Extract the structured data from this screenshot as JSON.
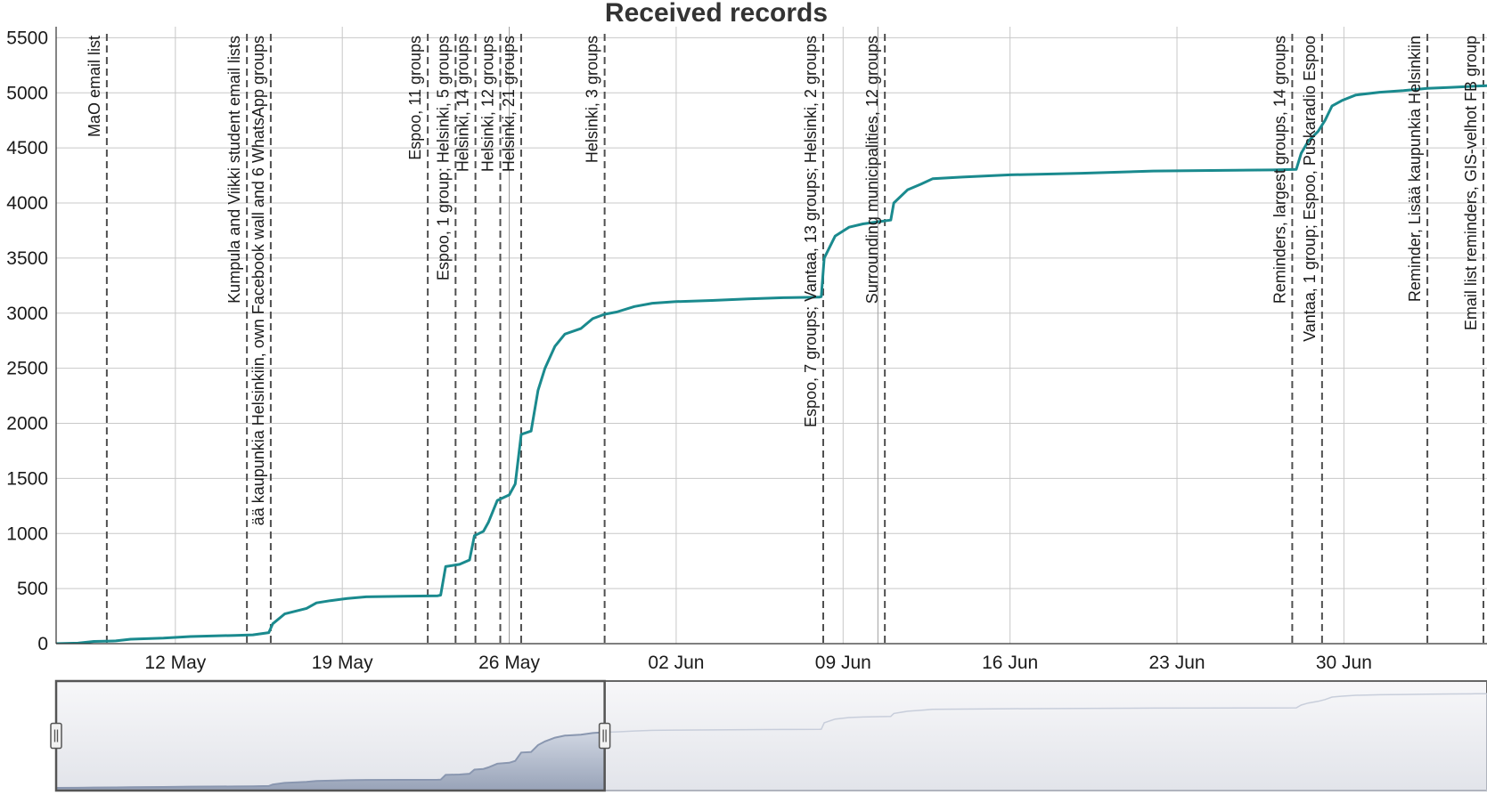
{
  "chart_data": {
    "type": "line",
    "title": "Received records",
    "xlabel": "",
    "ylabel": "",
    "x_axis_type": "date",
    "xlim": [
      "2020-05-07",
      "2020-07-06"
    ],
    "ylim": [
      0,
      5600
    ],
    "y_ticks": [
      0,
      500,
      1000,
      1500,
      2000,
      2500,
      3000,
      3500,
      4000,
      4500,
      5000,
      5500
    ],
    "x_ticks": [
      {
        "date": "2020-05-12",
        "label": "12 May"
      },
      {
        "date": "2020-05-19",
        "label": "19 May"
      },
      {
        "date": "2020-05-26",
        "label": "26 May"
      },
      {
        "date": "2020-06-02",
        "label": "02 Jun"
      },
      {
        "date": "2020-06-09",
        "label": "09 Jun"
      },
      {
        "date": "2020-06-16",
        "label": "16 Jun"
      },
      {
        "date": "2020-06-23",
        "label": "23 Jun"
      },
      {
        "date": "2020-06-30",
        "label": "30 Jun"
      }
    ],
    "grid": true,
    "legend": "none",
    "series_color": "#1a8a8e",
    "series": [
      {
        "points": [
          [
            "2020-05-07 00:00",
            0
          ],
          [
            "2020-05-07 22:00",
            5
          ],
          [
            "2020-05-08 14:00",
            20
          ],
          [
            "2020-05-09 12:00",
            25
          ],
          [
            "2020-05-10 03:00",
            40
          ],
          [
            "2020-05-11 12:00",
            50
          ],
          [
            "2020-05-12 15:00",
            65
          ],
          [
            "2020-05-14 12:00",
            75
          ],
          [
            "2020-05-15 06:00",
            80
          ],
          [
            "2020-05-15 22:00",
            100
          ],
          [
            "2020-05-16 02:00",
            180
          ],
          [
            "2020-05-16 14:00",
            270
          ],
          [
            "2020-05-17 03:00",
            300
          ],
          [
            "2020-05-17 12:00",
            320
          ],
          [
            "2020-05-17 22:00",
            370
          ],
          [
            "2020-05-18 12:00",
            390
          ],
          [
            "2020-05-19 05:00",
            410
          ],
          [
            "2020-05-20 00:00",
            425
          ],
          [
            "2020-05-21 12:00",
            430
          ],
          [
            "2020-05-23 00:00",
            435
          ],
          [
            "2020-05-23 03:00",
            440
          ],
          [
            "2020-05-23 08:00",
            700
          ],
          [
            "2020-05-23 22:00",
            720
          ],
          [
            "2020-05-24 08:00",
            760
          ],
          [
            "2020-05-24 13:00",
            980
          ],
          [
            "2020-05-24 22:00",
            1020
          ],
          [
            "2020-05-25 03:00",
            1100
          ],
          [
            "2020-05-25 12:00",
            1300
          ],
          [
            "2020-05-26 00:00",
            1350
          ],
          [
            "2020-05-26 06:00",
            1450
          ],
          [
            "2020-05-26 12:00",
            1900
          ],
          [
            "2020-05-26 22:00",
            1930
          ],
          [
            "2020-05-27 05:00",
            2300
          ],
          [
            "2020-05-27 12:00",
            2500
          ],
          [
            "2020-05-27 22:00",
            2700
          ],
          [
            "2020-05-28 08:00",
            2810
          ],
          [
            "2020-05-29 00:00",
            2860
          ],
          [
            "2020-05-29 12:00",
            2950
          ],
          [
            "2020-05-30 00:00",
            2990
          ],
          [
            "2020-05-30 12:00",
            3010
          ],
          [
            "2020-05-31 06:00",
            3060
          ],
          [
            "2020-06-01 00:00",
            3090
          ],
          [
            "2020-06-02 00:00",
            3105
          ],
          [
            "2020-06-03 12:00",
            3115
          ],
          [
            "2020-06-05 00:00",
            3130
          ],
          [
            "2020-06-06 12:00",
            3140
          ],
          [
            "2020-06-08 00:00",
            3145
          ],
          [
            "2020-06-08 02:00",
            3150
          ],
          [
            "2020-06-08 05:00",
            3500
          ],
          [
            "2020-06-08 16:00",
            3700
          ],
          [
            "2020-06-09 06:00",
            3780
          ],
          [
            "2020-06-09 20:00",
            3810
          ],
          [
            "2020-06-10 12:00",
            3830
          ],
          [
            "2020-06-11 00:00",
            3845
          ],
          [
            "2020-06-11 03:00",
            4000
          ],
          [
            "2020-06-11 17:00",
            4120
          ],
          [
            "2020-06-12 06:00",
            4170
          ],
          [
            "2020-06-12 18:00",
            4220
          ],
          [
            "2020-06-14 00:00",
            4235
          ],
          [
            "2020-06-16 00:00",
            4255
          ],
          [
            "2020-06-19 00:00",
            4270
          ],
          [
            "2020-06-22 00:00",
            4290
          ],
          [
            "2020-06-27 00:00",
            4300
          ],
          [
            "2020-06-28 00:00",
            4305
          ],
          [
            "2020-06-28 05:00",
            4450
          ],
          [
            "2020-06-28 12:00",
            4560
          ],
          [
            "2020-06-28 22:00",
            4650
          ],
          [
            "2020-06-29 05:00",
            4750
          ],
          [
            "2020-06-29 12:00",
            4880
          ],
          [
            "2020-06-29 22:00",
            4930
          ],
          [
            "2020-06-30 12:00",
            4980
          ],
          [
            "2020-07-01 12:00",
            5005
          ],
          [
            "2020-07-02 12:00",
            5020
          ],
          [
            "2020-07-03 12:00",
            5040
          ],
          [
            "2020-07-04 12:00",
            5050
          ],
          [
            "2020-07-05 12:00",
            5060
          ],
          [
            "2020-07-06 00:00",
            5065
          ]
        ]
      }
    ],
    "annotations": [
      {
        "date": "2020-05-09 03:00",
        "label": "MaO email list"
      },
      {
        "date": "2020-05-15 00:00",
        "label": "Kumpula and Viikki student email lists"
      },
      {
        "date": "2020-05-16 00:00",
        "label": "ää kaupunkia Helsinkiin, own Facebook wall and 6 WhatsApp groups"
      },
      {
        "date": "2020-05-22 14:00",
        "label": "Espoo, 11 groups"
      },
      {
        "date": "2020-05-23 18:00",
        "label": "Espoo, 1 group; Helsinki, 5 groups"
      },
      {
        "date": "2020-05-24 14:00",
        "label": "Helsinki, 14 groups"
      },
      {
        "date": "2020-05-25 15:00",
        "label": "Helsinki, 12 groups"
      },
      {
        "date": "2020-05-26 12:00",
        "label": "Helsinki, 21 groups"
      },
      {
        "date": "2020-05-30 00:00",
        "label": "Helsinki, 3 groups"
      },
      {
        "date": "2020-06-08 04:00",
        "label": "Espoo, 7 groups; Vantaa, 13 groups; Helsinki, 2 groups"
      },
      {
        "date": "2020-06-10 18:00",
        "label": "Surrounding municipalities, 12 groups"
      },
      {
        "date": "2020-06-27 20:00",
        "label": "Reminders, largest groups, 14 groups"
      },
      {
        "date": "2020-06-29 02:00",
        "label": "Vantaa, 1 group; Espoo, Puskaradio Espoo"
      },
      {
        "date": "2020-07-03 12:00",
        "label": "Reminder, Lisää kaupunkia Helsinkiin"
      },
      {
        "date": "2020-07-06 12:00",
        "label": "Email list reminders, GIS-velhot FB group"
      }
    ],
    "faint_lines": [
      {
        "date": "2020-05-26 00:00"
      },
      {
        "date": "2020-06-10 11:00"
      }
    ]
  },
  "navigator": {
    "selected_range": [
      "2020-05-07",
      "2020-05-30"
    ],
    "fill_color": "#b9c2d2",
    "line_color": "#8a97b0"
  }
}
